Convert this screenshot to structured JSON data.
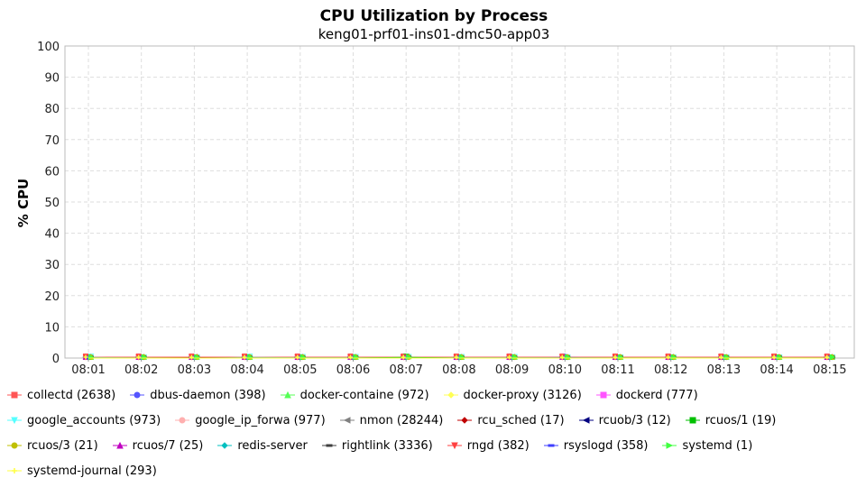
{
  "chart_data": {
    "type": "line",
    "title": "CPU Utilization by Process",
    "subtitle": "keng01-prf01-ins01-dmc50-app03",
    "xlabel": "",
    "ylabel": "% CPU",
    "ylim": [
      0,
      100
    ],
    "yticks": [
      "0",
      "10",
      "20",
      "30",
      "40",
      "50",
      "60",
      "70",
      "80",
      "90",
      "100"
    ],
    "x": [
      "08:01",
      "08:02",
      "08:03",
      "08:04",
      "08:05",
      "08:06",
      "08:07",
      "08:08",
      "08:09",
      "08:10",
      "08:11",
      "08:12",
      "08:13",
      "08:14",
      "08:15"
    ],
    "grid": true,
    "legend_position": "bottom",
    "series": [
      {
        "name": "collectd (2638)",
        "color": "#ff5555",
        "marker": "square",
        "values": [
          0.3,
          0.3,
          0.3,
          0.3,
          0.3,
          0.3,
          0.3,
          0.3,
          0.3,
          0.3,
          0.3,
          0.3,
          0.3,
          0.3,
          0.3
        ]
      },
      {
        "name": "dbus-daemon (398)",
        "color": "#5555ff",
        "marker": "circle",
        "values": [
          0,
          0,
          0,
          0,
          0,
          0,
          0,
          0,
          0,
          0.2,
          0,
          0,
          0,
          0,
          0
        ]
      },
      {
        "name": "docker-containe (972)",
        "color": "#55ff55",
        "marker": "triangle-up",
        "values": [
          0,
          0,
          0,
          0,
          0,
          0,
          0.2,
          0,
          0,
          0,
          0,
          0,
          0,
          0,
          0
        ]
      },
      {
        "name": "docker-proxy (3126)",
        "color": "#ffff55",
        "marker": "diamond",
        "values": [
          0,
          0,
          0,
          0,
          0,
          0,
          0,
          0.1,
          0,
          0,
          0,
          0.1,
          0,
          0.1,
          0
        ]
      },
      {
        "name": "dockerd (777)",
        "color": "#ff55ff",
        "marker": "square",
        "values": [
          0,
          0,
          0,
          0,
          0,
          0,
          0,
          0,
          0,
          0,
          0,
          0,
          0,
          0,
          0
        ]
      },
      {
        "name": "google_accounts (973)",
        "color": "#55ffff",
        "marker": "triangle-down",
        "values": [
          0.2,
          0,
          0,
          0.2,
          0.1,
          0.1,
          0.1,
          0.1,
          0.1,
          0,
          0,
          0,
          0,
          0,
          0
        ]
      },
      {
        "name": "google_ip_forwa (977)",
        "color": "#ffafaf",
        "marker": "circle",
        "values": [
          0,
          0,
          0,
          0,
          0,
          0,
          0,
          0,
          0,
          0,
          0,
          0,
          0,
          0,
          0
        ]
      },
      {
        "name": "nmon (28244)",
        "color": "#808080",
        "marker": "triangle-left",
        "values": [
          0.1,
          0.1,
          0.1,
          0.1,
          0.1,
          0.1,
          0.1,
          0.1,
          0.1,
          0.1,
          0.1,
          0.1,
          0.1,
          0.1,
          0.1
        ]
      },
      {
        "name": "rcu_sched (17)",
        "color": "#c00000",
        "marker": "diamond",
        "values": [
          0,
          0,
          0.1,
          0,
          0,
          0,
          0.1,
          0,
          0,
          0,
          0,
          0,
          0,
          0,
          0
        ]
      },
      {
        "name": "rcuob/3 (12)",
        "color": "#000080",
        "marker": "triangle-left",
        "values": [
          0,
          0,
          0,
          0,
          0,
          0,
          0,
          0,
          0,
          0,
          0,
          0,
          0,
          0,
          0
        ]
      },
      {
        "name": "rcuos/1 (19)",
        "color": "#00c000",
        "marker": "square",
        "values": [
          0,
          0,
          0,
          0,
          0,
          0,
          0.2,
          0,
          0,
          0,
          0,
          0,
          0,
          0,
          0
        ]
      },
      {
        "name": "rcuos/3 (21)",
        "color": "#c0c000",
        "marker": "circle",
        "values": [
          0,
          0,
          0,
          0,
          0,
          0,
          0,
          0,
          0,
          0,
          0,
          0,
          0,
          0,
          0
        ]
      },
      {
        "name": "rcuos/7 (25)",
        "color": "#c000c0",
        "marker": "triangle-up",
        "values": [
          0,
          0,
          0,
          0,
          0,
          0,
          0,
          0,
          0,
          0,
          0,
          0,
          0,
          0,
          0
        ]
      },
      {
        "name": "redis-server",
        "color": "#00c0c0",
        "marker": "diamond",
        "values": [
          0,
          0,
          0,
          0,
          0,
          0,
          0,
          0,
          0,
          0,
          0,
          0,
          0,
          0,
          0
        ]
      },
      {
        "name": "rightlink (3336)",
        "color": "#404040",
        "marker": "dash",
        "values": [
          0,
          0,
          0,
          0,
          0,
          0,
          0,
          0,
          0,
          0,
          0,
          0,
          0,
          0,
          0
        ]
      },
      {
        "name": "rngd (382)",
        "color": "#ff4040",
        "marker": "triangle-down",
        "values": [
          0,
          0,
          0,
          0,
          0,
          0,
          0,
          0,
          0,
          0,
          0,
          0,
          0,
          0,
          0
        ]
      },
      {
        "name": "rsyslogd (358)",
        "color": "#4040ff",
        "marker": "dash",
        "values": [
          0,
          0,
          0,
          0,
          0,
          0,
          0,
          0,
          0,
          0,
          0,
          0,
          0,
          0,
          0
        ]
      },
      {
        "name": "systemd (1)",
        "color": "#40ff40",
        "marker": "triangle-right",
        "values": [
          0,
          0,
          0,
          0,
          0,
          0,
          0,
          0,
          0,
          0,
          0,
          0,
          0,
          0,
          0
        ]
      },
      {
        "name": "systemd-journal (293)",
        "color": "#ffff40",
        "marker": "plus",
        "values": [
          0,
          0,
          0,
          0,
          0,
          0,
          0,
          0,
          0,
          0,
          0,
          0,
          0,
          0,
          0
        ]
      }
    ]
  }
}
